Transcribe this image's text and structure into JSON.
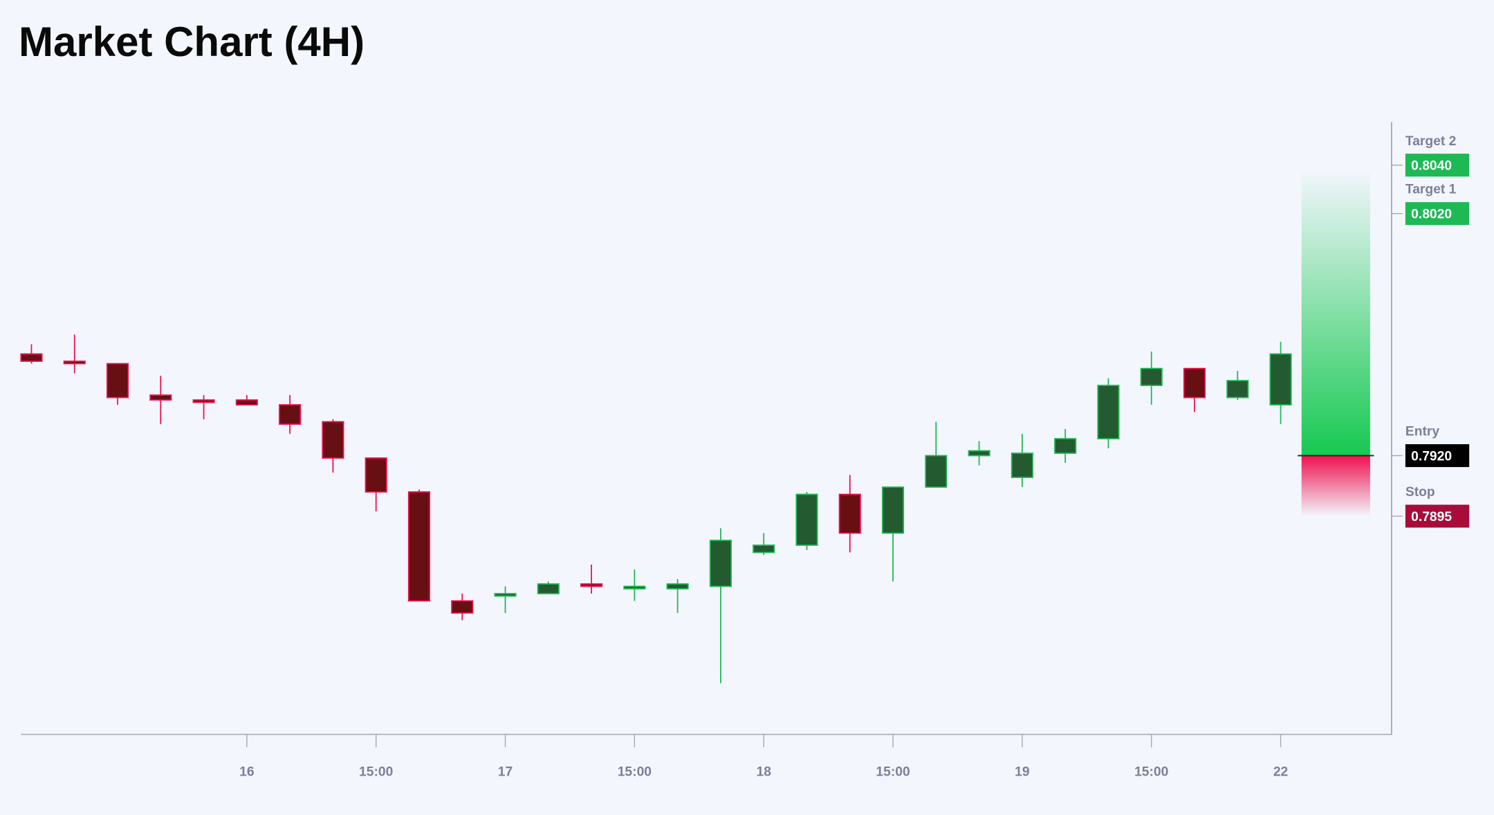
{
  "title": "Market Chart (4H)",
  "colors": {
    "background": "#f3f6fd",
    "up_body": "#245a2f",
    "up_border": "#1db954",
    "down_body": "#680f14",
    "down_border": "#f0104f",
    "target_zone": "#16c951",
    "stop_zone": "#f0104f",
    "axis": "#a3a7b3"
  },
  "chart_data": {
    "type": "candlestick",
    "title": "Market Chart (4H)",
    "xlabel": "",
    "ylabel": "",
    "grid": false,
    "ylim": [
      0.7806,
      0.806
    ],
    "x_ticks": [
      {
        "label": "16",
        "candle": 5
      },
      {
        "label": "15:00",
        "candle": 8
      },
      {
        "label": "17",
        "candle": 11
      },
      {
        "label": "15:00",
        "candle": 14
      },
      {
        "label": "18",
        "candle": 17
      },
      {
        "label": "15:00",
        "candle": 20
      },
      {
        "label": "19",
        "candle": 23
      },
      {
        "label": "15:00",
        "candle": 26
      },
      {
        "label": "22",
        "candle": 29
      }
    ],
    "candles": [
      {
        "o": 0.7962,
        "h": 0.7966,
        "l": 0.7958,
        "c": 0.7959
      },
      {
        "o": 0.7959,
        "h": 0.797,
        "l": 0.7954,
        "c": 0.7958
      },
      {
        "o": 0.7958,
        "h": 0.7958,
        "l": 0.7941,
        "c": 0.7944
      },
      {
        "o": 0.7945,
        "h": 0.7953,
        "l": 0.7933,
        "c": 0.7943
      },
      {
        "o": 0.7943,
        "h": 0.7945,
        "l": 0.7935,
        "c": 0.7942
      },
      {
        "o": 0.7943,
        "h": 0.7945,
        "l": 0.7941,
        "c": 0.7941
      },
      {
        "o": 0.7941,
        "h": 0.7945,
        "l": 0.7929,
        "c": 0.7933
      },
      {
        "o": 0.7934,
        "h": 0.7935,
        "l": 0.7913,
        "c": 0.7919
      },
      {
        "o": 0.7919,
        "h": 0.7919,
        "l": 0.7897,
        "c": 0.7905
      },
      {
        "o": 0.7905,
        "h": 0.7906,
        "l": 0.786,
        "c": 0.786
      },
      {
        "o": 0.786,
        "h": 0.7863,
        "l": 0.7852,
        "c": 0.7855
      },
      {
        "o": 0.7862,
        "h": 0.7866,
        "l": 0.7855,
        "c": 0.7863
      },
      {
        "o": 0.7863,
        "h": 0.7868,
        "l": 0.7863,
        "c": 0.7867
      },
      {
        "o": 0.7867,
        "h": 0.7875,
        "l": 0.7863,
        "c": 0.7866
      },
      {
        "o": 0.7865,
        "h": 0.7873,
        "l": 0.786,
        "c": 0.7866
      },
      {
        "o": 0.7865,
        "h": 0.7869,
        "l": 0.7855,
        "c": 0.7867
      },
      {
        "o": 0.7866,
        "h": 0.789,
        "l": 0.7826,
        "c": 0.7885
      },
      {
        "o": 0.788,
        "h": 0.7888,
        "l": 0.7879,
        "c": 0.7883
      },
      {
        "o": 0.7883,
        "h": 0.7905,
        "l": 0.7881,
        "c": 0.7904
      },
      {
        "o": 0.7904,
        "h": 0.7912,
        "l": 0.788,
        "c": 0.7888
      },
      {
        "o": 0.7888,
        "h": 0.7907,
        "l": 0.7868,
        "c": 0.7907
      },
      {
        "o": 0.7907,
        "h": 0.7934,
        "l": 0.7907,
        "c": 0.792
      },
      {
        "o": 0.792,
        "h": 0.7926,
        "l": 0.7916,
        "c": 0.7922
      },
      {
        "o": 0.7911,
        "h": 0.7929,
        "l": 0.7907,
        "c": 0.7921
      },
      {
        "o": 0.7921,
        "h": 0.7931,
        "l": 0.7917,
        "c": 0.7927
      },
      {
        "o": 0.7927,
        "h": 0.7952,
        "l": 0.7923,
        "c": 0.7949
      },
      {
        "o": 0.7949,
        "h": 0.7963,
        "l": 0.7941,
        "c": 0.7956
      },
      {
        "o": 0.7956,
        "h": 0.7956,
        "l": 0.7938,
        "c": 0.7944
      },
      {
        "o": 0.7944,
        "h": 0.7955,
        "l": 0.7943,
        "c": 0.7951
      },
      {
        "o": 0.7941,
        "h": 0.7967,
        "l": 0.7933,
        "c": 0.7962
      }
    ],
    "levels": [
      {
        "name": "Target 2",
        "value": "0.8040",
        "price": 0.804,
        "color": "#1db954"
      },
      {
        "name": "Target 1",
        "value": "0.8020",
        "price": 0.802,
        "color": "#1db954"
      },
      {
        "name": "Entry",
        "value": "0.7920",
        "price": 0.792,
        "color": "#000000"
      },
      {
        "name": "Stop",
        "value": "0.7895",
        "price": 0.7895,
        "color": "#a80c3a"
      }
    ]
  }
}
